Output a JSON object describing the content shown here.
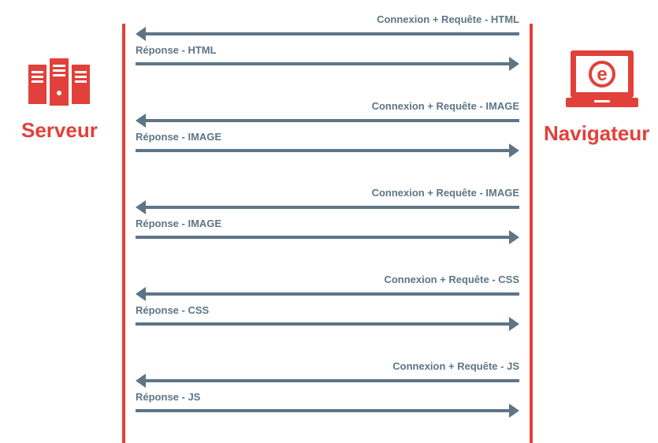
{
  "actors": {
    "server": {
      "label": "Serveur",
      "icon": "server-icon"
    },
    "browser": {
      "label": "Navigateur",
      "icon": "laptop-browser-icon"
    }
  },
  "colors": {
    "accent": "#e2403a",
    "arrow": "#5d7586"
  },
  "exchanges": [
    {
      "request": "Connexion + Requête - HTML",
      "response": "Réponse - HTML"
    },
    {
      "request": "Connexion + Requête - IMAGE",
      "response": "Réponse - IMAGE"
    },
    {
      "request": "Connexion + Requête - IMAGE",
      "response": "Réponse - IMAGE"
    },
    {
      "request": "Connexion + Requête - CSS",
      "response": "Réponse - CSS"
    },
    {
      "request": "Connexion + Requête - JS",
      "response": "Réponse - JS"
    }
  ]
}
